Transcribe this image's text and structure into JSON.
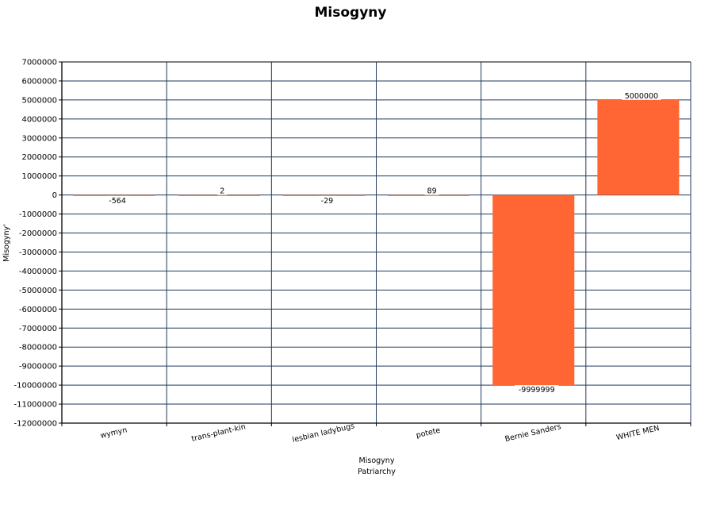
{
  "chart_data": {
    "type": "bar",
    "title": "Misogyny",
    "ylabel": "Misogyny'",
    "xlabel": "Misogyny",
    "xlabel_sub": "Patriarchy",
    "categories": [
      "wymyn",
      "trans-plant-kin",
      "lesbian ladybugs",
      "potete",
      "Bernie Sanders",
      "WHITE MEN"
    ],
    "values": [
      -564,
      2,
      -29,
      89,
      -9999999,
      5000000
    ],
    "data_labels": [
      "-564",
      "2",
      "-29",
      "89",
      "-9999999",
      "5000000"
    ],
    "ylim": [
      -12000000,
      7000000
    ],
    "yticks": [
      7000000,
      6000000,
      5000000,
      4000000,
      3000000,
      2000000,
      1000000,
      0,
      -1000000,
      -2000000,
      -3000000,
      -4000000,
      -5000000,
      -6000000,
      -7000000,
      -8000000,
      -9000000,
      -10000000,
      -11000000,
      -12000000
    ],
    "ytick_labels": [
      "7000000",
      "6000000",
      "5000000",
      "4000000",
      "3000000",
      "2000000",
      "1000000",
      "0",
      "-1000000",
      "-2000000",
      "-3000000",
      "-4000000",
      "-5000000",
      "-6000000",
      "-7000000",
      "-8000000",
      "-9000000",
      "-10000000",
      "-11000000",
      "-12000000"
    ],
    "grid": true,
    "legend": "none",
    "colors": {
      "bar": "#ff6633",
      "grid": "#1f3a5c",
      "axis": "#000000",
      "background": "#ffffff"
    }
  }
}
